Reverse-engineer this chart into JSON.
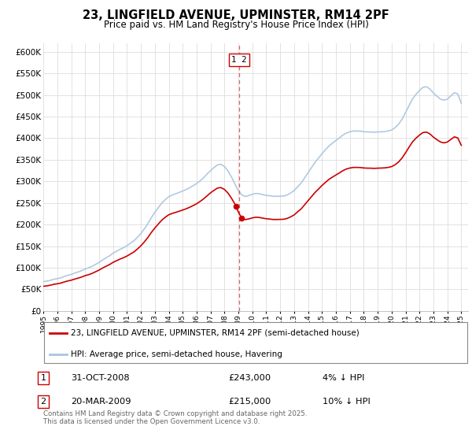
{
  "title": "23, LINGFIELD AVENUE, UPMINSTER, RM14 2PF",
  "subtitle": "Price paid vs. HM Land Registry's House Price Index (HPI)",
  "ylim": [
    0,
    620000
  ],
  "yticks": [
    0,
    50000,
    100000,
    150000,
    200000,
    250000,
    300000,
    350000,
    400000,
    450000,
    500000,
    550000,
    600000
  ],
  "ytick_labels": [
    "£0",
    "£50K",
    "£100K",
    "£150K",
    "£200K",
    "£250K",
    "£300K",
    "£350K",
    "£400K",
    "£450K",
    "£500K",
    "£550K",
    "£600K"
  ],
  "hpi_color": "#a8c4e0",
  "price_color": "#cc0000",
  "vline_color": "#cc0000",
  "background_color": "#ffffff",
  "grid_color": "#dddddd",
  "legend_label_price": "23, LINGFIELD AVENUE, UPMINSTER, RM14 2PF (semi-detached house)",
  "legend_label_hpi": "HPI: Average price, semi-detached house, Havering",
  "annotation1_label": "1",
  "annotation1_date": "31-OCT-2008",
  "annotation1_price": "£243,000",
  "annotation1_pct": "4% ↓ HPI",
  "annotation2_label": "2",
  "annotation2_date": "20-MAR-2009",
  "annotation2_price": "£215,000",
  "annotation2_pct": "10% ↓ HPI",
  "footer": "Contains HM Land Registry data © Crown copyright and database right 2025.\nThis data is licensed under the Open Government Licence v3.0.",
  "xmin": 1995,
  "xmax": 2025.5,
  "sale1_x": 2008.83,
  "sale1_y": 243000,
  "sale2_x": 2009.22,
  "sale2_y": 215000
}
